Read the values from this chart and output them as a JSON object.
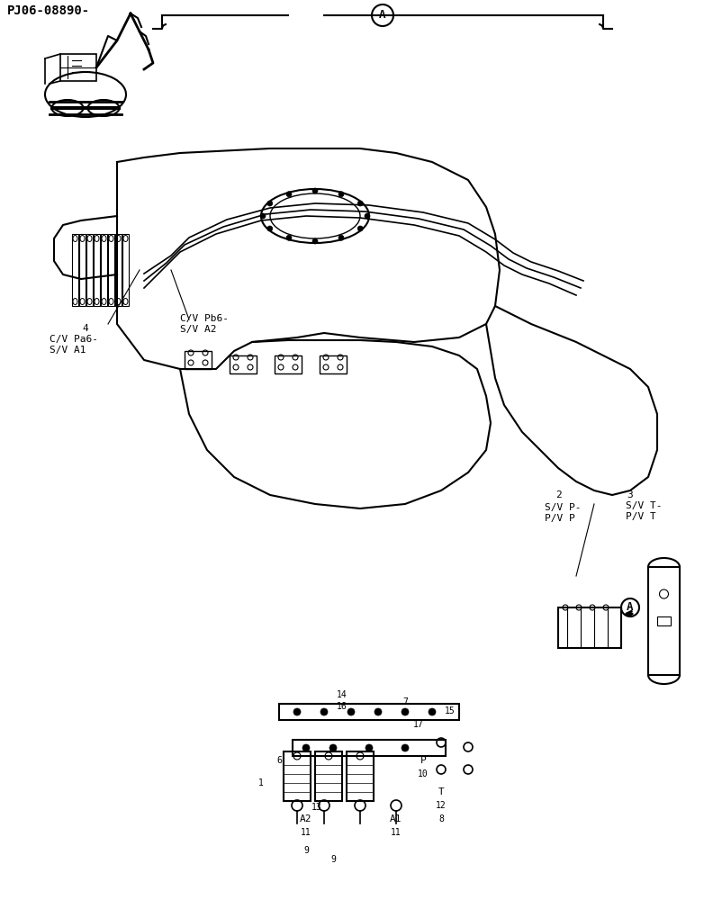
{
  "title": "PJ06-08890-",
  "bg_color": "#ffffff",
  "line_color": "#000000",
  "label_A_circle": "A",
  "labels": {
    "top_left": "PJ06-08890-",
    "label2": "2",
    "label3": "3",
    "sv_p": "S/V P-\nP/V P",
    "sv_t": "S/V T-\nP/V T",
    "label4": "4",
    "cv_pa": "C/V Pa6-\nS/V A1",
    "cv_pb": "C/V Pb6-\nS/V A2",
    "label1": "1",
    "label6": "6",
    "label7": "7",
    "label8": "8",
    "label9": "9",
    "label10": "10",
    "label11": "11",
    "label12": "12",
    "label13": "13",
    "label14": "14",
    "label15": "15",
    "label16": "16",
    "label17": "17",
    "A2": "A2",
    "A1": "A1",
    "P": "P",
    "T": "T"
  },
  "bracket_label": "A",
  "figsize": [
    7.92,
    10.0
  ],
  "dpi": 100
}
